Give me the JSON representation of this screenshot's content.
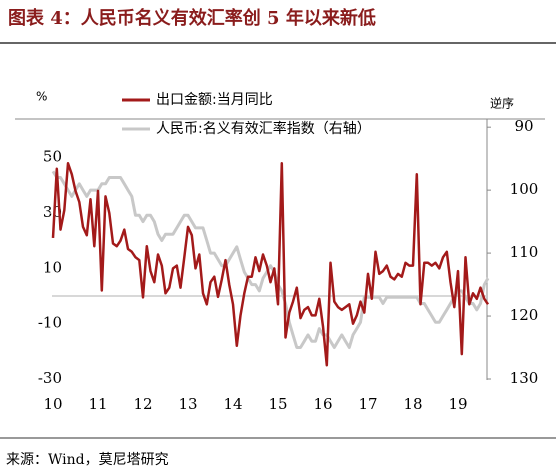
{
  "header": {
    "title": "图表 4：人民币名义有效汇率创 5 年以来新低"
  },
  "chart_data": {
    "type": "line",
    "y_unit": "%",
    "y2_note": "逆序",
    "categories": [
      "10",
      null,
      null,
      null,
      null,
      null,
      null,
      null,
      null,
      null,
      null,
      null,
      "11",
      null,
      null,
      null,
      null,
      null,
      null,
      null,
      null,
      null,
      null,
      null,
      "12",
      null,
      null,
      null,
      null,
      null,
      null,
      null,
      null,
      null,
      null,
      null,
      "13",
      null,
      null,
      null,
      null,
      null,
      null,
      null,
      null,
      null,
      null,
      null,
      "14",
      null,
      null,
      null,
      null,
      null,
      null,
      null,
      null,
      null,
      null,
      null,
      "15",
      null,
      null,
      null,
      null,
      null,
      null,
      null,
      null,
      null,
      null,
      null,
      "16",
      null,
      null,
      null,
      null,
      null,
      null,
      null,
      null,
      null,
      null,
      null,
      "17",
      null,
      null,
      null,
      null,
      null,
      null,
      null,
      null,
      null,
      null,
      null,
      "18",
      null,
      null,
      null,
      null,
      null,
      null,
      null,
      null,
      null,
      null,
      null,
      "19",
      null,
      null,
      null,
      null,
      null,
      null,
      null,
      null
    ],
    "series": [
      {
        "name": "出口金额:当月同比",
        "color": "#a31a1a",
        "values": [
          21,
          46,
          24,
          31,
          48,
          44,
          38,
          34,
          25,
          22,
          35,
          18,
          38,
          2,
          36,
          30,
          19,
          18,
          20,
          24,
          17,
          16,
          14,
          13,
          -0.5,
          18,
          9,
          5,
          15,
          11,
          1,
          3,
          10,
          11,
          3,
          14,
          25,
          22,
          10,
          15,
          1,
          -3,
          5,
          7,
          -0.3,
          6,
          13,
          4,
          -3,
          -18,
          -7,
          1,
          7,
          7,
          14,
          9,
          15,
          11,
          5,
          10,
          -3,
          48,
          -15,
          -6,
          -2,
          3,
          -8,
          -5,
          -4,
          -7,
          -7,
          -1,
          -11,
          -25,
          12,
          -2,
          -4,
          -5,
          -4,
          -3,
          -10,
          -7,
          -2,
          -6,
          8,
          -1,
          16,
          8,
          9,
          11,
          7,
          6,
          8,
          7,
          12,
          11,
          11,
          44,
          -3,
          12,
          12,
          11,
          12,
          10,
          14,
          16,
          5,
          -4,
          9,
          -21,
          14,
          -3,
          1,
          -1,
          3,
          -1,
          -3
        ]
      },
      {
        "name": "人民币:名义有效汇率指数（右轴）",
        "color": "#c8c8c8",
        "axis": "y2",
        "values": [
          97,
          98,
          98,
          99,
          100,
          101,
          100,
          99,
          100,
          101,
          100,
          100,
          100,
          99,
          99,
          98,
          98,
          98,
          98,
          99,
          100,
          101,
          104,
          104,
          105,
          104,
          104,
          105,
          107,
          108,
          107,
          107,
          107,
          106,
          105,
          104,
          104,
          105,
          106,
          106,
          106,
          108,
          110,
          110,
          111,
          112,
          112,
          111,
          110,
          109,
          111,
          113,
          114,
          115,
          115,
          116,
          114,
          113,
          112,
          113,
          115,
          116,
          118,
          121,
          123,
          125,
          125,
          124,
          123,
          124,
          124,
          122,
          123,
          123,
          124,
          125,
          124,
          123,
          124,
          125,
          123,
          122,
          121,
          117,
          117,
          117,
          117,
          117,
          118,
          117,
          117,
          117,
          117,
          117,
          117,
          117,
          117,
          117,
          118,
          118,
          119,
          120,
          121,
          121,
          120,
          119,
          118,
          117,
          116,
          116,
          117,
          118,
          118,
          119,
          118,
          115,
          114
        ]
      }
    ],
    "ylim": [
      -30,
      64
    ],
    "yticks": [
      -30,
      -10,
      10,
      30,
      50
    ],
    "y2lim": [
      88.7,
      130
    ],
    "y2ticks": [
      90,
      100,
      110,
      120,
      130
    ],
    "y2_reversed": true,
    "zero_line": true
  },
  "source": "来源：Wind，莫尼塔研究"
}
